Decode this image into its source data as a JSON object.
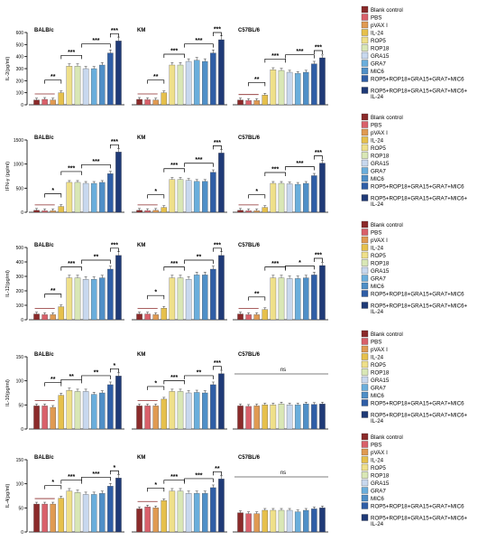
{
  "colors": [
    "#8B2A2A",
    "#D9606A",
    "#E09A52",
    "#E6C04C",
    "#EFE08A",
    "#D9E7B5",
    "#C8D8EE",
    "#6AAEDC",
    "#4F8FC7",
    "#2F5EA6",
    "#1F3A77"
  ],
  "legend_labels": [
    "Blank control",
    "PBS",
    "pVAX I",
    "IL-24",
    "ROP5",
    "ROP18",
    "GRA15",
    "GRA7",
    "MIC6",
    "ROP5+ROP18+GRA15+GRA7+MIC6",
    "ROP5+ROP18+GRA15+GRA7+MIC6+IL-24"
  ],
  "chart_data": [
    {
      "type": "bar",
      "ylabel": "IL-2(pg/ml)",
      "ylim": [
        0,
        600
      ],
      "yticks": [
        0,
        100,
        200,
        300,
        400,
        500,
        600
      ],
      "categories": [
        "Blank control",
        "PBS",
        "pVAX I",
        "IL-24",
        "ROP5",
        "ROP18",
        "GRA15",
        "GRA7",
        "MIC6",
        "ROP5+ROP18+GRA15+GRA7+MIC6",
        "ROP5+ROP18+GRA15+GRA7+MIC6+IL-24"
      ],
      "series": [
        {
          "name": "BALB/c",
          "values": [
            40,
            45,
            40,
            100,
            320,
            320,
            300,
            300,
            330,
            430,
            530
          ]
        },
        {
          "name": "KM",
          "values": [
            45,
            42,
            40,
            100,
            330,
            330,
            360,
            370,
            360,
            430,
            540
          ]
        },
        {
          "name": "C57BL/6",
          "values": [
            40,
            35,
            35,
            80,
            290,
            285,
            270,
            260,
            270,
            340,
            390
          ]
        }
      ],
      "significance": [
        [
          "**",
          "***",
          "***",
          "***"
        ],
        [
          "**",
          "***",
          "***",
          "***"
        ],
        [
          "**",
          "***",
          "***",
          "***"
        ]
      ]
    },
    {
      "type": "bar",
      "ylabel": "IFN-γ (pg/ml)",
      "ylim": [
        0,
        1500
      ],
      "yticks": [
        0,
        500,
        1000,
        1500
      ],
      "categories": [
        "Blank control",
        "PBS",
        "pVAX I",
        "IL-24",
        "ROP5",
        "ROP18",
        "GRA15",
        "GRA7",
        "MIC6",
        "ROP5+ROP18+GRA15+GRA7+MIC6",
        "ROP5+ROP18+GRA15+GRA7+MIC6+IL-24"
      ],
      "series": [
        {
          "name": "BALB/c",
          "values": [
            40,
            30,
            30,
            120,
            620,
            620,
            600,
            600,
            620,
            800,
            1250
          ]
        },
        {
          "name": "KM",
          "values": [
            40,
            35,
            40,
            100,
            680,
            680,
            660,
            640,
            640,
            830,
            1230
          ]
        },
        {
          "name": "C57BL/6",
          "values": [
            40,
            30,
            30,
            100,
            600,
            600,
            590,
            580,
            600,
            760,
            1020
          ]
        }
      ],
      "significance": [
        [
          "*",
          "***",
          "***",
          "***"
        ],
        [
          "*",
          "***",
          "***",
          "***"
        ],
        [
          "*",
          "***",
          "***",
          "***"
        ]
      ]
    },
    {
      "type": "bar",
      "ylabel": "IL-12(pg/ml)",
      "ylim": [
        0,
        500
      ],
      "yticks": [
        0,
        100,
        200,
        300,
        400,
        500
      ],
      "categories": [
        "Blank control",
        "PBS",
        "pVAX I",
        "IL-24",
        "ROP5",
        "ROP18",
        "GRA15",
        "GRA7",
        "MIC6",
        "ROP5+ROP18+GRA15+GRA7+MIC6",
        "ROP5+ROP18+GRA15+GRA7+MIC6+IL-24"
      ],
      "series": [
        {
          "name": "BALB/c",
          "values": [
            40,
            35,
            35,
            90,
            290,
            290,
            280,
            280,
            290,
            350,
            445
          ]
        },
        {
          "name": "KM",
          "values": [
            40,
            40,
            35,
            80,
            290,
            290,
            280,
            310,
            310,
            350,
            445
          ]
        },
        {
          "name": "C57BL/6",
          "values": [
            40,
            35,
            35,
            70,
            290,
            290,
            285,
            285,
            290,
            310,
            375
          ]
        }
      ],
      "significance": [
        [
          "**",
          "***",
          "**",
          "***"
        ],
        [
          "*",
          "***",
          "**",
          "***"
        ],
        [
          "**",
          "***",
          "*",
          "***"
        ]
      ]
    },
    {
      "type": "bar",
      "ylabel": "IL-10(pg/ml)",
      "ylim": [
        0,
        150
      ],
      "yticks": [
        0,
        50,
        100,
        150
      ],
      "categories": [
        "Blank control",
        "PBS",
        "pVAX I",
        "IL-24",
        "ROP5",
        "ROP18",
        "GRA15",
        "GRA7",
        "MIC6",
        "ROP5+ROP18+GRA15+GRA7+MIC6",
        "ROP5+ROP18+GRA15+GRA7+MIC6+IL-24"
      ],
      "series": [
        {
          "name": "BALB/c",
          "values": [
            48,
            48,
            45,
            70,
            80,
            78,
            78,
            72,
            75,
            92,
            110
          ]
        },
        {
          "name": "KM",
          "values": [
            48,
            48,
            48,
            62,
            78,
            78,
            75,
            76,
            75,
            92,
            115
          ]
        },
        {
          "name": "C57BL/6",
          "values": [
            48,
            47,
            48,
            50,
            50,
            52,
            50,
            50,
            52,
            51,
            52
          ]
        }
      ],
      "significance": [
        [
          "**",
          "**",
          "**",
          "*"
        ],
        [
          "*",
          "***",
          "**",
          "***"
        ],
        [
          "ns"
        ]
      ]
    },
    {
      "type": "bar",
      "ylabel": "IL-4(pg/ml)",
      "ylim": [
        0,
        150
      ],
      "yticks": [
        0,
        50,
        100,
        150
      ],
      "categories": [
        "Blank control",
        "PBS",
        "pVAX I",
        "IL-24",
        "ROP5",
        "ROP18",
        "GRA15",
        "GRA7",
        "MIC6",
        "ROP5+ROP18+GRA15+GRA7+MIC6",
        "ROP5+ROP18+GRA15+GRA7+MIC6+IL-24"
      ],
      "series": [
        {
          "name": "BALB/c",
          "values": [
            58,
            58,
            58,
            70,
            85,
            82,
            78,
            78,
            80,
            95,
            112
          ]
        },
        {
          "name": "KM",
          "values": [
            48,
            52,
            50,
            65,
            85,
            85,
            80,
            80,
            80,
            92,
            110
          ]
        },
        {
          "name": "C57BL/6",
          "values": [
            40,
            38,
            38,
            45,
            45,
            45,
            45,
            42,
            45,
            48,
            50
          ]
        }
      ],
      "significance": [
        [
          "*",
          "***",
          "***",
          "*"
        ],
        [
          "*",
          "***",
          "***",
          "**"
        ],
        [
          "ns"
        ]
      ]
    }
  ]
}
